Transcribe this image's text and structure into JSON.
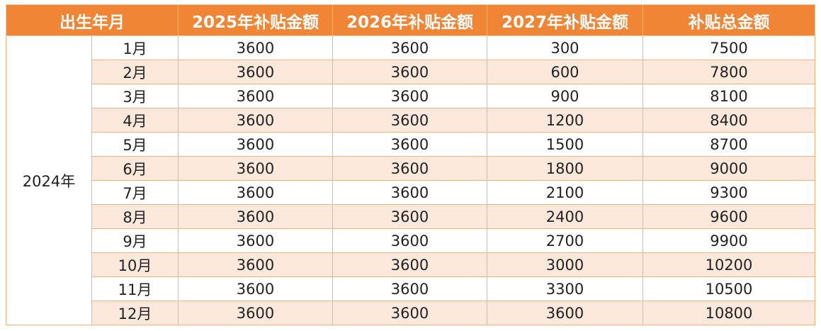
{
  "table": {
    "header": [
      "出生年月",
      "2025年补贴金额",
      "2026年补贴金额",
      "2027年补贴金额",
      "补贴总金额"
    ],
    "year": "2024年",
    "rows": [
      [
        "1月",
        3600,
        3600,
        300,
        7500
      ],
      [
        "2月",
        3600,
        3600,
        600,
        7800
      ],
      [
        "3月",
        3600,
        3600,
        900,
        8100
      ],
      [
        "4月",
        3600,
        3600,
        1200,
        8400
      ],
      [
        "5月",
        3600,
        3600,
        1500,
        8700
      ],
      [
        "6月",
        3600,
        3600,
        1800,
        9000
      ],
      [
        "7月",
        3600,
        3600,
        2100,
        9300
      ],
      [
        "8月",
        3600,
        3600,
        2400,
        9600
      ],
      [
        "9月",
        3600,
        3600,
        2700,
        9900
      ],
      [
        "10月",
        3600,
        3600,
        3000,
        10200
      ],
      [
        "11月",
        3600,
        3600,
        3300,
        10500
      ],
      [
        "12月",
        3600,
        3600,
        3600,
        10800
      ]
    ]
  }
}
